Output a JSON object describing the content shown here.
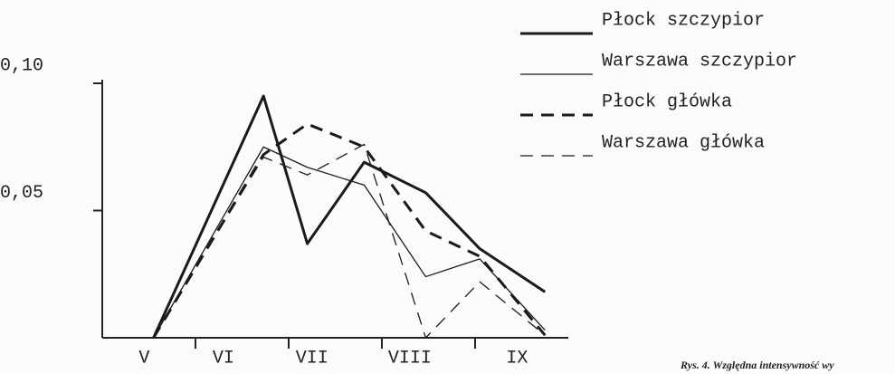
{
  "chart_data": {
    "type": "line",
    "x": [
      5.55,
      6.73,
      7.2,
      7.81,
      8.47,
      9.05,
      9.75
    ],
    "xlim": [
      5,
      10
    ],
    "xticks": [
      {
        "value": 5.45,
        "label": "V"
      },
      {
        "value": 6.3,
        "label": "VI"
      },
      {
        "value": 7.25,
        "label": "VII"
      },
      {
        "value": 8.3,
        "label": "VIII"
      },
      {
        "value": 9.45,
        "label": "IX"
      }
    ],
    "ylim": [
      0,
      0.1
    ],
    "yticks": [
      {
        "value": 0.05,
        "label": "0,05"
      },
      {
        "value": 0.1,
        "label": "0,10"
      }
    ],
    "series": [
      {
        "name": "Płock szczypior",
        "color": "#1a1a1a",
        "style": "solid",
        "weight": "thick",
        "values": [
          0,
          0.095,
          0.037,
          0.069,
          0.057,
          0.035,
          0.018
        ]
      },
      {
        "name": "Warszawa szczypior",
        "color": "#1a1a1a",
        "style": "solid",
        "weight": "thin",
        "values": [
          0,
          0.075,
          0.067,
          0.06,
          0.024,
          0.031,
          0.003
        ]
      },
      {
        "name": "Płock główka",
        "color": "#1a1a1a",
        "style": "dashed",
        "weight": "thick",
        "values": [
          0,
          0.072,
          0.084,
          0.075,
          0.042,
          0.032,
          0.001
        ]
      },
      {
        "name": "Warszawa główka",
        "color": "#1a1a1a",
        "style": "dashed",
        "weight": "thin",
        "values": [
          0,
          0.071,
          0.064,
          0.076,
          0,
          0.022,
          0.001
        ]
      }
    ],
    "caption": "Rys. 4. Względna intensywność wy"
  }
}
